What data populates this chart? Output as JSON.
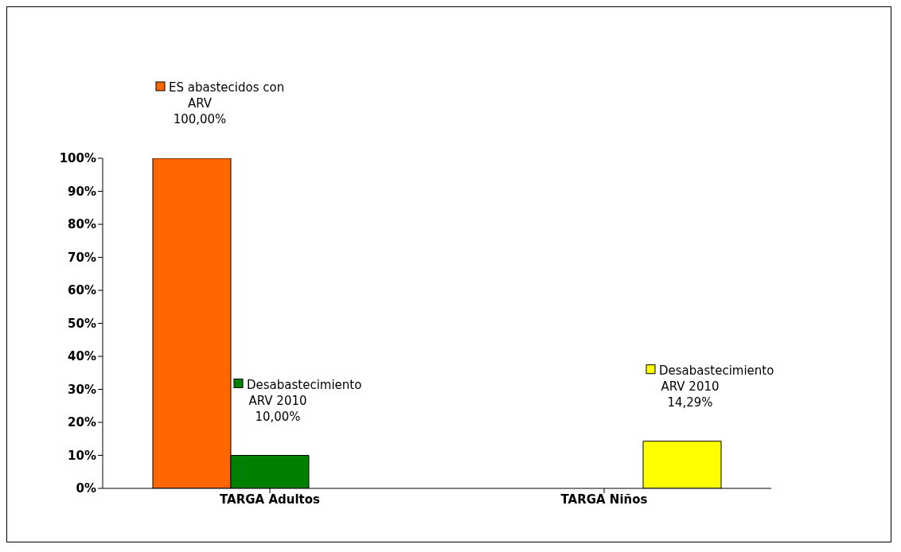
{
  "chart_data": {
    "type": "bar",
    "categories": [
      "TARGA Adultos",
      "TARGA Niños"
    ],
    "series": [
      {
        "name": "ES abastecidos con ARV",
        "color": "#ff6600",
        "values": [
          100,
          null
        ],
        "value_labels": [
          "100,00%",
          null
        ]
      },
      {
        "name": "Desabastecimiento ARV 2010",
        "color": "#008000",
        "values": [
          10,
          null
        ],
        "value_labels": [
          "10,00%",
          null
        ]
      },
      {
        "name": "Desabastecimiento ARV 2010",
        "color": "#ffff00",
        "values": [
          null,
          14.29
        ],
        "value_labels": [
          null,
          "14,29%"
        ]
      }
    ],
    "ylim": [
      0,
      100
    ],
    "yticks": [
      {
        "value": 0,
        "label": "0%"
      },
      {
        "value": 10,
        "label": "10%"
      },
      {
        "value": 20,
        "label": "20%"
      },
      {
        "value": 30,
        "label": "30%"
      },
      {
        "value": 40,
        "label": "40%"
      },
      {
        "value": 50,
        "label": "50%"
      },
      {
        "value": 60,
        "label": "60%"
      },
      {
        "value": 70,
        "label": "70%"
      },
      {
        "value": 80,
        "label": "80%"
      },
      {
        "value": 90,
        "label": "90%"
      },
      {
        "value": 100,
        "label": "100%"
      }
    ],
    "grid": false,
    "legend": "top"
  }
}
